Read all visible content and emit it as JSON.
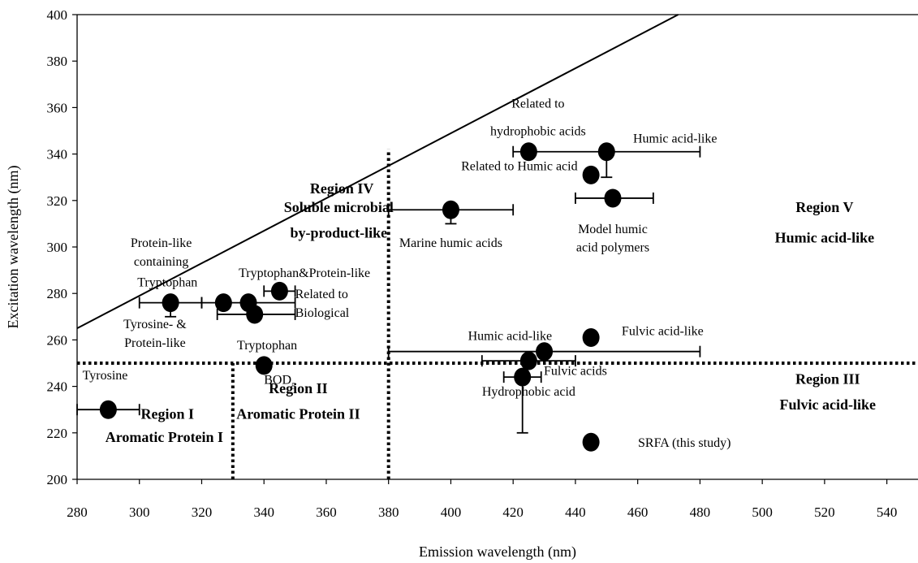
{
  "chart_data": {
    "type": "scatter",
    "title": "",
    "xlabel": "Emission wavelength (nm)",
    "ylabel": "Excitation wavelength (nm)",
    "xlim": [
      280,
      550
    ],
    "ylim": [
      200,
      400
    ],
    "xticks": [
      280,
      300,
      320,
      340,
      360,
      380,
      400,
      420,
      440,
      460,
      480,
      500,
      520,
      540
    ],
    "yticks": [
      200,
      220,
      240,
      260,
      280,
      300,
      320,
      340,
      360,
      380,
      400
    ],
    "grid": false,
    "diagonal_line": [
      [
        280,
        265
      ],
      [
        473,
        400
      ]
    ],
    "boundaries": [
      {
        "axis": "y",
        "value": 250,
        "from": 280,
        "to": 550
      },
      {
        "axis": "x",
        "value": 380,
        "from": 200,
        "to": 342
      },
      {
        "axis": "x",
        "value": 330,
        "from": 200,
        "to": 250
      }
    ],
    "points": [
      {
        "x": 290,
        "y": 230,
        "xerr": [
          280,
          300
        ]
      },
      {
        "x": 310,
        "y": 276,
        "xerr": [
          300,
          320
        ],
        "yerr": [
          270,
          276
        ]
      },
      {
        "x": 327,
        "y": 276,
        "xerr": [
          320,
          350
        ]
      },
      {
        "x": 335,
        "y": 276
      },
      {
        "x": 337,
        "y": 271,
        "xerr": [
          325,
          350
        ]
      },
      {
        "x": 345,
        "y": 281,
        "xerr": [
          340,
          350
        ]
      },
      {
        "x": 340,
        "y": 249
      },
      {
        "x": 400,
        "y": 316,
        "xerr": [
          380,
          420
        ],
        "yerr": [
          310,
          316
        ]
      },
      {
        "x": 425,
        "y": 341,
        "xerr": [
          420,
          450
        ]
      },
      {
        "x": 450,
        "y": 341,
        "xerr": [
          450,
          480
        ],
        "yerr": [
          330,
          341
        ]
      },
      {
        "x": 445,
        "y": 331
      },
      {
        "x": 452,
        "y": 321,
        "xerr": [
          440,
          465
        ]
      },
      {
        "x": 445,
        "y": 261
      },
      {
        "x": 430,
        "y": 255,
        "xerr": [
          380,
          480
        ]
      },
      {
        "x": 425,
        "y": 251,
        "xerr": [
          410,
          440
        ]
      },
      {
        "x": 423,
        "y": 244,
        "xerr": [
          417,
          429
        ],
        "yerr": [
          220,
          244
        ]
      },
      {
        "x": 445,
        "y": 216
      }
    ],
    "annotations": [
      {
        "x": 289,
        "y": 243,
        "text": "Tyrosine",
        "anchor": "middle"
      },
      {
        "x": 307,
        "y": 300,
        "text": "Protein-like",
        "anchor": "middle"
      },
      {
        "x": 307,
        "y": 292,
        "text": "containing",
        "anchor": "middle"
      },
      {
        "x": 309,
        "y": 283,
        "text": "Tryptophan",
        "anchor": "middle"
      },
      {
        "x": 305,
        "y": 265,
        "text": "Tyrosine- &",
        "anchor": "middle"
      },
      {
        "x": 305,
        "y": 257,
        "text": "Protein-like",
        "anchor": "middle"
      },
      {
        "x": 353,
        "y": 287,
        "text": "Tryptophan&Protein-like",
        "anchor": "middle"
      },
      {
        "x": 350,
        "y": 278,
        "text": "Related to",
        "anchor": "start"
      },
      {
        "x": 350,
        "y": 270,
        "text": "Biological",
        "anchor": "start"
      },
      {
        "x": 341,
        "y": 256,
        "text": "Tryptophan",
        "anchor": "middle"
      },
      {
        "x": 340,
        "y": 241,
        "text": "BOD",
        "anchor": "start",
        "sub": "5"
      },
      {
        "x": 428,
        "y": 360,
        "text": "Related to",
        "anchor": "middle"
      },
      {
        "x": 428,
        "y": 348,
        "text": "hydrophobic acids",
        "anchor": "middle"
      },
      {
        "x": 472,
        "y": 345,
        "text": "Humic acid-like",
        "anchor": "middle"
      },
      {
        "x": 422,
        "y": 333,
        "text": "Related to Humic acid",
        "anchor": "middle"
      },
      {
        "x": 452,
        "y": 306,
        "text": "Model humic",
        "anchor": "middle"
      },
      {
        "x": 452,
        "y": 298,
        "text": "acid polymers",
        "anchor": "middle"
      },
      {
        "x": 400,
        "y": 300,
        "text": "Marine humic acids",
        "anchor": "middle"
      },
      {
        "x": 419,
        "y": 260,
        "text": "Humic acid-like",
        "anchor": "middle"
      },
      {
        "x": 468,
        "y": 262,
        "text": "Fulvic acid-like",
        "anchor": "middle"
      },
      {
        "x": 440,
        "y": 245,
        "text": "Fulvic acids",
        "anchor": "middle"
      },
      {
        "x": 425,
        "y": 236,
        "text": "Hydrophobic acid",
        "anchor": "middle"
      },
      {
        "x": 475,
        "y": 214,
        "text": "SRFA (this study)",
        "anchor": "middle"
      }
    ],
    "regions": [
      {
        "x": 365,
        "y": 323,
        "text": "Region IV"
      },
      {
        "x": 364,
        "y": 315,
        "text": "Soluble microbial"
      },
      {
        "x": 364,
        "y": 304,
        "text": "by-product-like"
      },
      {
        "x": 520,
        "y": 315,
        "text": "Region V"
      },
      {
        "x": 520,
        "y": 302,
        "text": "Humic acid-like"
      },
      {
        "x": 351,
        "y": 237,
        "text": "Region II"
      },
      {
        "x": 351,
        "y": 226,
        "text": "Aromatic Protein II"
      },
      {
        "x": 309,
        "y": 226,
        "text": "Region I"
      },
      {
        "x": 308,
        "y": 216,
        "text": "Aromatic Protein I"
      },
      {
        "x": 521,
        "y": 241,
        "text": "Region III"
      },
      {
        "x": 521,
        "y": 230,
        "text": "Fulvic acid-like"
      }
    ]
  }
}
